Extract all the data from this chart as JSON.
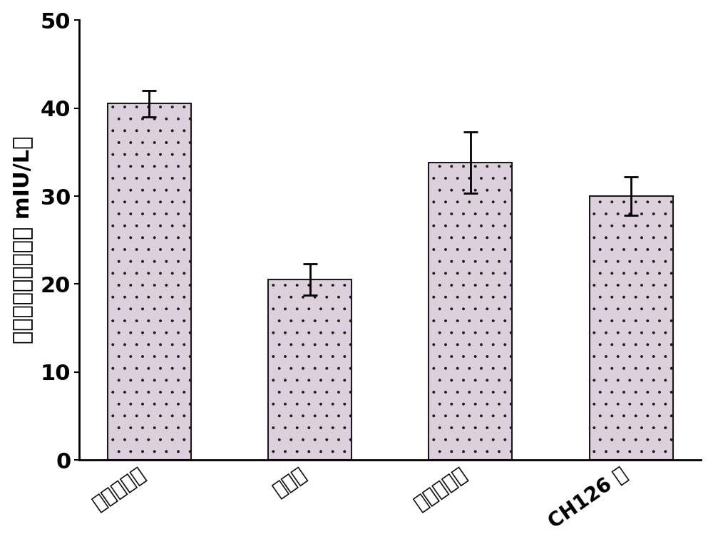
{
  "categories": [
    "空白对照组",
    "模型组",
    "阳性对照组",
    "CH126 组"
  ],
  "values": [
    40.5,
    20.5,
    33.8,
    30.0
  ],
  "errors": [
    1.5,
    1.8,
    3.5,
    2.2
  ],
  "bar_color": "#dcd0dc",
  "bar_edgecolor": "#1a1a1a",
  "hatch_color": "#6aaa6a",
  "ylabel_chars": [
    "血",
    "清",
    "中",
    "膨",
    "岛",
    "素",
    "水",
    "平",
    "（",
    " ",
    "m",
    "I",
    "U",
    "/",
    "L",
    "）"
  ],
  "ylabel": "血清中膨岛素水平（ mIU/L）",
  "ylim": [
    0,
    50
  ],
  "yticks": [
    0,
    10,
    20,
    30,
    40,
    50
  ],
  "bar_width": 0.52,
  "background_color": "#ffffff",
  "tick_fontsize": 22,
  "ylabel_fontsize": 22,
  "xlabel_rotation": 35,
  "xlabel_fontsize": 20,
  "elinewidth": 2.0,
  "ecapsize": 7,
  "ecapthick": 2.0
}
